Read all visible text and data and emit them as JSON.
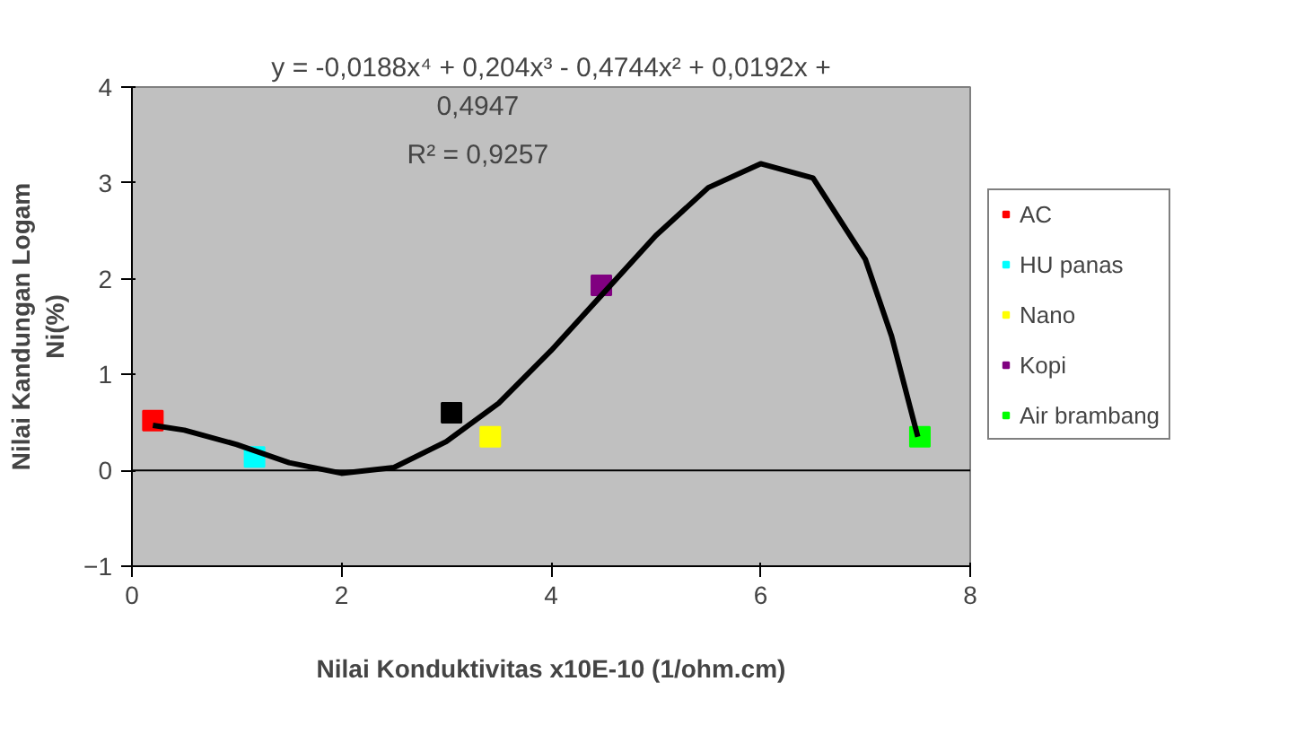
{
  "chart_data": {
    "type": "scatter",
    "xlabel": "Nilai Konduktivitas x10E-10 (1/ohm.cm)",
    "ylabel": "Nilai Kandungan Logam\nNi(%)",
    "xlim": [
      0,
      8
    ],
    "ylim": [
      -1,
      4
    ],
    "xticks": [
      0,
      2,
      4,
      6,
      8
    ],
    "yticks": [
      -1,
      0,
      1,
      2,
      3,
      4
    ],
    "grid": false,
    "legend": "right",
    "marker": "square",
    "series": [
      {
        "name": "AC",
        "color": "#ff0000",
        "x": [
          0.2
        ],
        "values": [
          0.52
        ]
      },
      {
        "name": "HU panas",
        "color": "#00ffff",
        "x": [
          1.17
        ],
        "values": [
          0.14
        ]
      },
      {
        "color": "#000000",
        "x": [
          3.05
        ],
        "values": [
          0.6
        ]
      },
      {
        "name": "Nano",
        "color": "#ffff00",
        "x": [
          3.42
        ],
        "values": [
          0.35
        ]
      },
      {
        "name": "Kopi",
        "color": "#800080",
        "x": [
          4.48
        ],
        "values": [
          1.93
        ]
      },
      {
        "name": "Air brambang",
        "color": "#00ff00",
        "x": [
          7.52
        ],
        "values": [
          0.35
        ]
      },
      {
        "type": "line",
        "marker": "none",
        "color": "#000000",
        "x": [
          0.2,
          0.5,
          1,
          1.5,
          2,
          2.5,
          3,
          3.5,
          4,
          4.5,
          5,
          5.5,
          6,
          6.5,
          7,
          7.25,
          7.5
        ],
        "values": [
          0.47,
          0.42,
          0.27,
          0.08,
          -0.03,
          0.03,
          0.3,
          0.7,
          1.25,
          1.85,
          2.45,
          2.95,
          3.2,
          3.05,
          2.2,
          1.4,
          0.35
        ]
      }
    ],
    "ref_lines": [
      {
        "axis": "y",
        "value": 0,
        "color": "#000000"
      }
    ],
    "annotations": [
      "y = -0,0188x⁴ + 0,204x³ - 0,4744x² + 0,0192x +\n0,4947",
      "R² = 0,9257"
    ]
  }
}
